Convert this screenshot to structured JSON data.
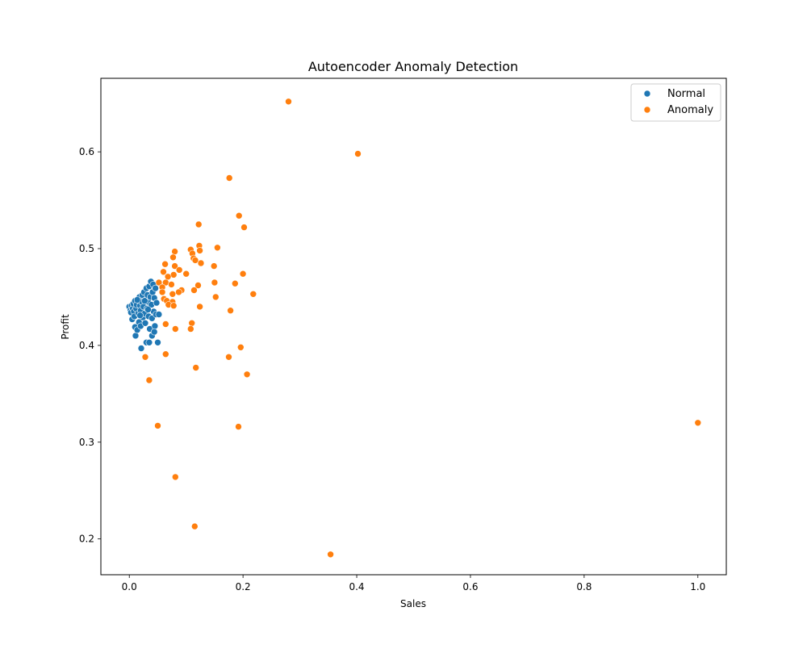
{
  "chart_data": {
    "type": "scatter",
    "title": "Autoencoder Anomaly Detection",
    "xlabel": "Sales",
    "ylabel": "Profit",
    "xlim": [
      -0.05,
      1.05
    ],
    "ylim": [
      0.163,
      0.676
    ],
    "xticks": [
      0.0,
      0.2,
      0.4,
      0.6,
      0.8,
      1.0
    ],
    "xtick_labels": [
      "0.0",
      "0.2",
      "0.4",
      "0.6",
      "0.8",
      "1.0"
    ],
    "yticks": [
      0.2,
      0.3,
      0.4,
      0.5,
      0.6
    ],
    "ytick_labels": [
      "0.2",
      "0.3",
      "0.4",
      "0.5",
      "0.6"
    ],
    "grid": false,
    "legend_position": "top-right",
    "series": [
      {
        "name": "Normal",
        "color": "#1f77b4",
        "points": [
          [
            0.0,
            0.44
          ],
          [
            0.002,
            0.436
          ],
          [
            0.003,
            0.434
          ],
          [
            0.004,
            0.441
          ],
          [
            0.005,
            0.427
          ],
          [
            0.006,
            0.438
          ],
          [
            0.007,
            0.443
          ],
          [
            0.008,
            0.435
          ],
          [
            0.009,
            0.43
          ],
          [
            0.01,
            0.446
          ],
          [
            0.01,
            0.419
          ],
          [
            0.011,
            0.41
          ],
          [
            0.012,
            0.438
          ],
          [
            0.013,
            0.442
          ],
          [
            0.014,
            0.416
          ],
          [
            0.015,
            0.447
          ],
          [
            0.016,
            0.433
          ],
          [
            0.017,
            0.424
          ],
          [
            0.018,
            0.45
          ],
          [
            0.019,
            0.441
          ],
          [
            0.02,
            0.436
          ],
          [
            0.02,
            0.42
          ],
          [
            0.021,
            0.397
          ],
          [
            0.022,
            0.445
          ],
          [
            0.023,
            0.452
          ],
          [
            0.024,
            0.429
          ],
          [
            0.025,
            0.44
          ],
          [
            0.026,
            0.455
          ],
          [
            0.027,
            0.433
          ],
          [
            0.028,
            0.423
          ],
          [
            0.029,
            0.447
          ],
          [
            0.03,
            0.459
          ],
          [
            0.03,
            0.403
          ],
          [
            0.031,
            0.438
          ],
          [
            0.032,
            0.452
          ],
          [
            0.033,
            0.445
          ],
          [
            0.034,
            0.43
          ],
          [
            0.035,
            0.461
          ],
          [
            0.035,
            0.403
          ],
          [
            0.036,
            0.417
          ],
          [
            0.037,
            0.45
          ],
          [
            0.038,
            0.466
          ],
          [
            0.039,
            0.442
          ],
          [
            0.04,
            0.41
          ],
          [
            0.04,
            0.428
          ],
          [
            0.041,
            0.455
          ],
          [
            0.042,
            0.463
          ],
          [
            0.043,
            0.435
          ],
          [
            0.044,
            0.449
          ],
          [
            0.045,
            0.42
          ],
          [
            0.046,
            0.459
          ],
          [
            0.047,
            0.432
          ],
          [
            0.048,
            0.444
          ],
          [
            0.05,
            0.403
          ],
          [
            0.052,
            0.432
          ],
          [
            0.014,
            0.447
          ],
          [
            0.019,
            0.431
          ],
          [
            0.027,
            0.446
          ],
          [
            0.033,
            0.437
          ],
          [
            0.044,
            0.414
          ]
        ]
      },
      {
        "name": "Anomaly",
        "color": "#ff7f0e",
        "points": [
          [
            0.28,
            0.652
          ],
          [
            0.402,
            0.598
          ],
          [
            0.176,
            0.573
          ],
          [
            0.193,
            0.534
          ],
          [
            0.122,
            0.525
          ],
          [
            0.202,
            0.522
          ],
          [
            0.123,
            0.503
          ],
          [
            0.155,
            0.501
          ],
          [
            0.124,
            0.498
          ],
          [
            0.108,
            0.499
          ],
          [
            0.08,
            0.497
          ],
          [
            0.111,
            0.495
          ],
          [
            0.077,
            0.491
          ],
          [
            0.113,
            0.49
          ],
          [
            0.116,
            0.488
          ],
          [
            0.126,
            0.485
          ],
          [
            0.063,
            0.484
          ],
          [
            0.08,
            0.482
          ],
          [
            0.149,
            0.482
          ],
          [
            0.088,
            0.478
          ],
          [
            0.06,
            0.476
          ],
          [
            0.1,
            0.474
          ],
          [
            0.2,
            0.474
          ],
          [
            0.078,
            0.473
          ],
          [
            0.068,
            0.471
          ],
          [
            0.15,
            0.465
          ],
          [
            0.186,
            0.464
          ],
          [
            0.052,
            0.465
          ],
          [
            0.064,
            0.465
          ],
          [
            0.074,
            0.463
          ],
          [
            0.121,
            0.462
          ],
          [
            0.058,
            0.46
          ],
          [
            0.092,
            0.457
          ],
          [
            0.114,
            0.457
          ],
          [
            0.058,
            0.455
          ],
          [
            0.087,
            0.455
          ],
          [
            0.076,
            0.453
          ],
          [
            0.218,
            0.453
          ],
          [
            0.152,
            0.45
          ],
          [
            0.061,
            0.448
          ],
          [
            0.066,
            0.446
          ],
          [
            0.076,
            0.445
          ],
          [
            0.069,
            0.442
          ],
          [
            0.078,
            0.441
          ],
          [
            0.124,
            0.44
          ],
          [
            0.178,
            0.436
          ],
          [
            0.11,
            0.423
          ],
          [
            0.064,
            0.422
          ],
          [
            0.108,
            0.417
          ],
          [
            0.081,
            0.417
          ],
          [
            0.196,
            0.398
          ],
          [
            0.064,
            0.391
          ],
          [
            0.028,
            0.388
          ],
          [
            0.175,
            0.388
          ],
          [
            0.117,
            0.377
          ],
          [
            0.207,
            0.37
          ],
          [
            0.035,
            0.364
          ],
          [
            1.0,
            0.32
          ],
          [
            0.05,
            0.317
          ],
          [
            0.192,
            0.316
          ],
          [
            0.081,
            0.264
          ],
          [
            0.115,
            0.213
          ],
          [
            0.354,
            0.184
          ]
        ]
      }
    ]
  }
}
